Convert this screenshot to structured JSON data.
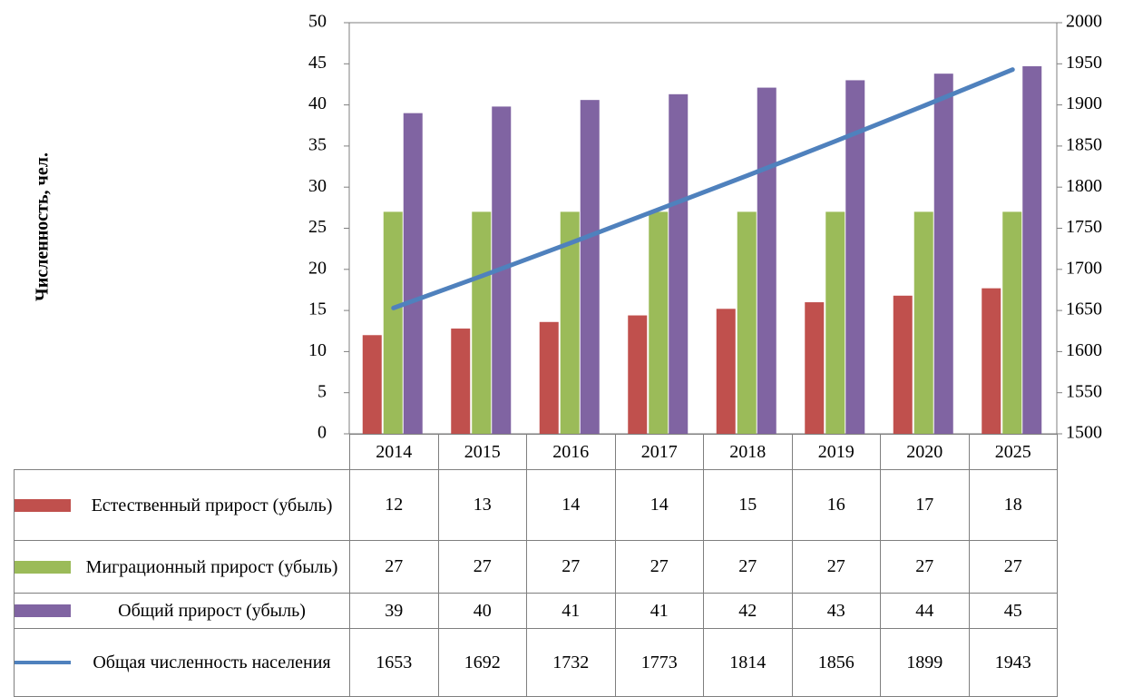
{
  "chart_data": {
    "type": "bar",
    "ylabel": "Численность, чел.",
    "categories": [
      "2014",
      "2015",
      "2016",
      "2017",
      "2018",
      "2019",
      "2020",
      "2025"
    ],
    "ylim": [
      0,
      50
    ],
    "yticks": [
      0,
      5,
      10,
      15,
      20,
      25,
      30,
      35,
      40,
      45,
      50
    ],
    "y2lim": [
      1500,
      2000
    ],
    "y2ticks": [
      1500,
      1550,
      1600,
      1650,
      1700,
      1750,
      1800,
      1850,
      1900,
      1950,
      2000
    ],
    "grid": false,
    "series": [
      {
        "name": "Естественный прирост (убыль)",
        "color": "#c0504d",
        "type": "bar",
        "values": [
          12,
          12.8,
          13.6,
          14.4,
          15.2,
          16,
          16.8,
          17.7
        ],
        "value_labels": [
          "12",
          "13",
          "14",
          "14",
          "15",
          "16",
          "17",
          "18"
        ]
      },
      {
        "name": "Миграционный прирост (убыль)",
        "color": "#9bbb59",
        "type": "bar",
        "values": [
          27,
          27,
          27,
          27,
          27,
          27,
          27,
          27
        ],
        "value_labels": [
          "27",
          "27",
          "27",
          "27",
          "27",
          "27",
          "27",
          "27"
        ]
      },
      {
        "name": "Общий прирост (убыль)",
        "color": "#8064a2",
        "type": "bar",
        "values": [
          39,
          39.8,
          40.6,
          41.3,
          42.1,
          43,
          43.8,
          44.7
        ],
        "value_labels": [
          "39",
          "40",
          "41",
          "41",
          "42",
          "43",
          "44",
          "45"
        ]
      },
      {
        "name": "Общая численность населения",
        "color": "#4f81bd",
        "type": "line",
        "axis": "y2",
        "values": [
          1653,
          1692,
          1732,
          1773,
          1814,
          1856,
          1899,
          1943
        ]
      }
    ]
  }
}
